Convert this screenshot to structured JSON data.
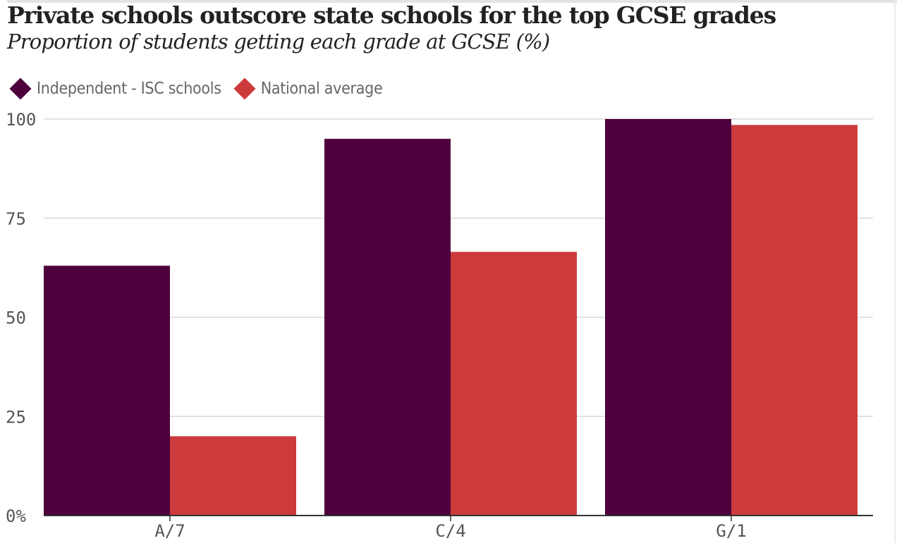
{
  "chart_data": {
    "type": "bar",
    "title": "Private schools outscore state schools for the top GCSE grades",
    "subtitle": "Proportion of students getting each grade at GCSE (%)",
    "categories": [
      "A/7",
      "C/4",
      "G/1"
    ],
    "series": [
      {
        "name": "Independent - ISC schools",
        "color": "#4e003c",
        "values": [
          63,
          95,
          100
        ]
      },
      {
        "name": "National average",
        "color": "#cc3a3c",
        "values": [
          20,
          66.5,
          98.5
        ]
      }
    ],
    "ylim": [
      0,
      100
    ],
    "yticks": [
      0,
      25,
      50,
      75,
      100
    ],
    "ytick_labels": [
      "0%",
      "25",
      "50",
      "75",
      "100"
    ],
    "grid": true,
    "legend_position": "top-left",
    "xlabel": "",
    "ylabel": ""
  }
}
